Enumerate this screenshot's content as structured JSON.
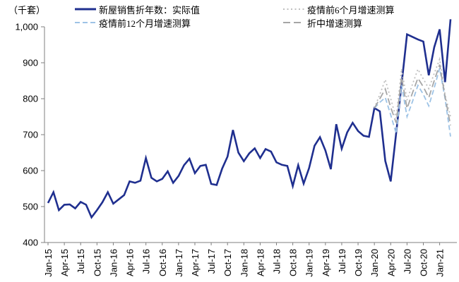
{
  "chart_data": {
    "type": "line",
    "unit_label": "（千套）",
    "x_tick_labels": [
      "Jan-15",
      "Apr-15",
      "Jul-15",
      "Oct-15",
      "Jan-16",
      "Apr-16",
      "Jul-16",
      "Oct-16",
      "Jan-17",
      "Apr-17",
      "Jul-17",
      "Oct-17",
      "Jan-18",
      "Apr-18",
      "Jul-18",
      "Oct-18",
      "Jan-19",
      "Apr-19",
      "Jul-19",
      "Oct-19",
      "Jan-20",
      "Apr-20",
      "Jul-20",
      "Oct-20",
      "Jan-21"
    ],
    "months_per_tick": 3,
    "n_points": 75,
    "x_range_note": "monthly points Jan-15 through Mar-21",
    "ylim": [
      400,
      1000
    ],
    "y_tick_step": 100,
    "y_tick_labels": [
      "400",
      "500",
      "600",
      "700",
      "800",
      "900",
      "1,000"
    ],
    "grid": false,
    "legend_position": "top",
    "series": [
      {
        "name": "新屋销售折年数：实际值",
        "key": "actual",
        "color": "#1f2f8f",
        "style": "solid",
        "start_index": 0,
        "values": [
          510,
          540,
          490,
          505,
          506,
          495,
          513,
          505,
          470,
          490,
          512,
          540,
          508,
          520,
          532,
          570,
          566,
          572,
          635,
          580,
          570,
          577,
          598,
          566,
          585,
          615,
          633,
          593,
          613,
          616,
          563,
          560,
          605,
          639,
          713,
          650,
          626,
          648,
          662,
          635,
          660,
          653,
          623,
          616,
          613,
          557,
          615,
          564,
          607,
          669,
          693,
          656,
          604,
          729,
          661,
          706,
          733,
          710,
          697,
          694,
          774,
          765,
          627,
          570,
          704,
          840,
          979,
          972,
          965,
          959,
          865,
          943,
          993,
          846,
          1021
        ]
      },
      {
        "name": "疫情前6个月增速测算",
        "key": "pre6m",
        "color": "#bfbfbf",
        "style": "dotted",
        "start_index": 60,
        "values": [
          774,
          812,
          853,
          800,
          746,
          883,
          796,
          840,
          882,
          855,
          828,
          870,
          910,
          810,
          750
        ]
      },
      {
        "name": "疫情前12个月增速测算",
        "key": "pre12m",
        "color": "#9dc3e6",
        "style": "dashed",
        "start_index": 60,
        "values": [
          774,
          790,
          803,
          755,
          703,
          838,
          750,
          792,
          837,
          812,
          780,
          830,
          885,
          800,
          695
        ]
      },
      {
        "name": "折中增速测算",
        "key": "mid",
        "color": "#a6a6a6",
        "style": "longdash",
        "start_index": 60,
        "values": [
          774,
          800,
          827,
          776,
          733,
          860,
          773,
          816,
          857,
          833,
          803,
          850,
          895,
          805,
          726
        ]
      }
    ]
  }
}
